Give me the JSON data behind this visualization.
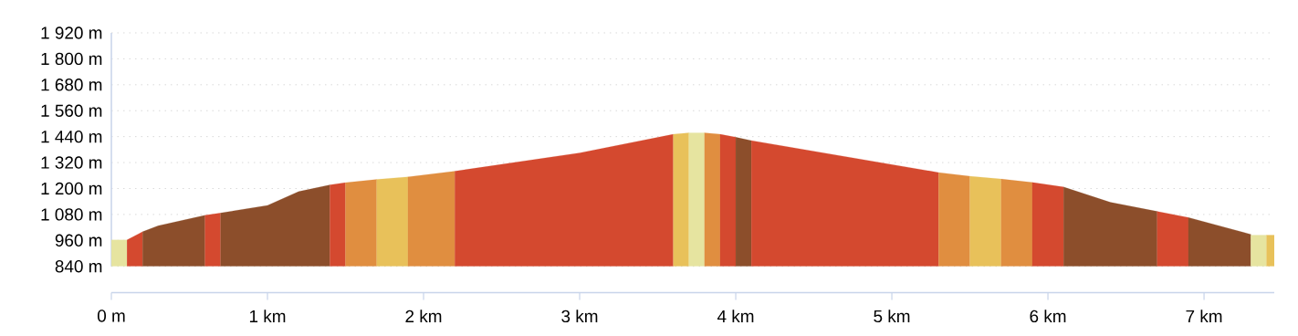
{
  "chart_data": {
    "type": "area",
    "xlim": [
      0,
      7.45
    ],
    "ylim": [
      840,
      1920
    ],
    "xticks": [
      {
        "value": 0,
        "label": "0 m"
      },
      {
        "value": 1,
        "label": "1 km"
      },
      {
        "value": 2,
        "label": "2 km"
      },
      {
        "value": 3,
        "label": "3 km"
      },
      {
        "value": 4,
        "label": "4 km"
      },
      {
        "value": 5,
        "label": "5 km"
      },
      {
        "value": 6,
        "label": "6 km"
      },
      {
        "value": 7,
        "label": "7 km"
      }
    ],
    "yticks": [
      {
        "value": 840,
        "label": "840 m"
      },
      {
        "value": 960,
        "label": "960 m"
      },
      {
        "value": 1080,
        "label": "1 080 m"
      },
      {
        "value": 1200,
        "label": "1 200 m"
      },
      {
        "value": 1320,
        "label": "1 320 m"
      },
      {
        "value": 1440,
        "label": "1 440 m"
      },
      {
        "value": 1560,
        "label": "1 560 m"
      },
      {
        "value": 1680,
        "label": "1 680 m"
      },
      {
        "value": 1800,
        "label": "1 800 m"
      },
      {
        "value": 1920,
        "label": "1 920 m"
      }
    ],
    "grid": "y",
    "series": [
      {
        "color": "#e6e4a0",
        "x": [
          0,
          0.1
        ],
        "values": [
          962,
          962
        ]
      },
      {
        "color": "#d4492f",
        "x": [
          0.1,
          0.2
        ],
        "values": [
          962,
          1000
        ]
      },
      {
        "color": "#8c4e2b",
        "x": [
          0.2,
          0.3,
          0.6
        ],
        "values": [
          1000,
          1028,
          1076
        ]
      },
      {
        "color": "#d4492f",
        "x": [
          0.6,
          0.7
        ],
        "values": [
          1076,
          1087
        ]
      },
      {
        "color": "#8c4e2b",
        "x": [
          0.7,
          1.0,
          1.2,
          1.4
        ],
        "values": [
          1087,
          1122,
          1186,
          1217
        ]
      },
      {
        "color": "#d4492f",
        "x": [
          1.4,
          1.5
        ],
        "values": [
          1217,
          1227
        ]
      },
      {
        "color": "#e08e40",
        "x": [
          1.5,
          1.7
        ],
        "values": [
          1227,
          1242
        ]
      },
      {
        "color": "#e8c15a",
        "x": [
          1.7,
          1.9
        ],
        "values": [
          1242,
          1254
        ]
      },
      {
        "color": "#e08e40",
        "x": [
          1.9,
          2.2
        ],
        "values": [
          1254,
          1280
        ]
      },
      {
        "color": "#d4492f",
        "x": [
          2.2,
          3.0,
          3.6
        ],
        "values": [
          1280,
          1365,
          1451
        ]
      },
      {
        "color": "#e8c15a",
        "x": [
          3.6,
          3.7
        ],
        "values": [
          1451,
          1458
        ]
      },
      {
        "color": "#e6e4a0",
        "x": [
          3.7,
          3.8
        ],
        "values": [
          1458,
          1458
        ]
      },
      {
        "color": "#e08e40",
        "x": [
          3.8,
          3.9
        ],
        "values": [
          1458,
          1451
        ]
      },
      {
        "color": "#d4492f",
        "x": [
          3.9,
          4.0
        ],
        "values": [
          1451,
          1437
        ]
      },
      {
        "color": "#8c4e2b",
        "x": [
          4.0,
          4.1
        ],
        "values": [
          1437,
          1422
        ]
      },
      {
        "color": "#d4492f",
        "x": [
          4.1,
          5.3
        ],
        "values": [
          1422,
          1274
        ]
      },
      {
        "color": "#e08e40",
        "x": [
          5.3,
          5.5
        ],
        "values": [
          1274,
          1257
        ]
      },
      {
        "color": "#e8c15a",
        "x": [
          5.5,
          5.7
        ],
        "values": [
          1257,
          1244
        ]
      },
      {
        "color": "#e08e40",
        "x": [
          5.7,
          5.9
        ],
        "values": [
          1244,
          1228
        ]
      },
      {
        "color": "#d4492f",
        "x": [
          5.9,
          6.1
        ],
        "values": [
          1228,
          1207
        ]
      },
      {
        "color": "#8c4e2b",
        "x": [
          6.1,
          6.4,
          6.7
        ],
        "values": [
          1207,
          1136,
          1094
        ]
      },
      {
        "color": "#d4492f",
        "x": [
          6.7,
          6.9
        ],
        "values": [
          1094,
          1066
        ]
      },
      {
        "color": "#8c4e2b",
        "x": [
          6.9,
          7.3
        ],
        "values": [
          1066,
          988
        ]
      },
      {
        "color": "#e6e4a0",
        "x": [
          7.3,
          7.4
        ],
        "values": [
          984,
          984
        ]
      },
      {
        "color": "#e8c15a",
        "x": [
          7.4,
          7.45
        ],
        "values": [
          984,
          984
        ]
      }
    ]
  }
}
